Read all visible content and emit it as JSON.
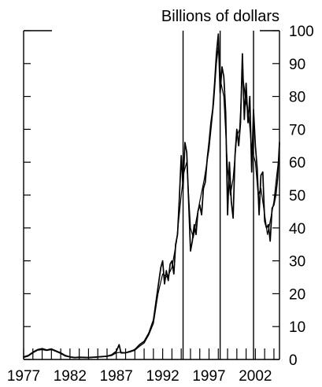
{
  "chart_data": {
    "type": "line",
    "title": "",
    "unit_label": "Billions of dollars",
    "xlabel": "",
    "ylabel": "Billions of dollars",
    "xlim": [
      1977,
      2004.6
    ],
    "ylim": [
      0,
      100
    ],
    "x_tick_labels": [
      "1977",
      "1982",
      "1987",
      "1992",
      "1997",
      "2002"
    ],
    "y_tick_labels": [
      "0",
      "10",
      "20",
      "30",
      "40",
      "50",
      "60",
      "70",
      "80",
      "90",
      "100"
    ],
    "y_ticks_side": "right",
    "grid": false,
    "legend": "none",
    "vertical_markers": [
      1994.2,
      1998.2,
      2001.8
    ],
    "series": [
      {
        "color": "#000000",
        "x": [
          1977.0,
          1977.5,
          1978.0,
          1978.5,
          1979.0,
          1979.5,
          1980.0,
          1980.5,
          1981.0,
          1981.5,
          1982.0,
          1982.5,
          1983.0,
          1984.0,
          1985.0,
          1986.0,
          1986.5,
          1987.0,
          1987.3,
          1987.5,
          1988.0,
          1988.5,
          1989.0,
          1989.5,
          1990.0,
          1990.5,
          1991.0,
          1991.3,
          1991.6,
          1991.8,
          1992.0,
          1992.2,
          1992.4,
          1992.6,
          1992.8,
          1993.0,
          1993.2,
          1993.4,
          1993.6,
          1993.8,
          1994.0,
          1994.2,
          1994.4,
          1994.6,
          1994.8,
          1995.0,
          1995.2,
          1995.4,
          1995.6,
          1995.8,
          1996.0,
          1996.2,
          1996.4,
          1996.6,
          1996.8,
          1997.0,
          1997.2,
          1997.4,
          1997.6,
          1997.8,
          1998.0,
          1998.2,
          1998.4,
          1998.6,
          1998.8,
          1999.0,
          1999.2,
          1999.4,
          1999.6,
          1999.8,
          2000.0,
          2000.2,
          2000.4,
          2000.6,
          2000.8,
          2001.0,
          2001.2,
          2001.4,
          2001.6,
          2001.8,
          2002.0,
          2002.2,
          2002.4,
          2002.6,
          2002.8,
          2003.0,
          2003.2,
          2003.4,
          2003.6,
          2003.8,
          2004.0,
          2004.2,
          2004.4,
          2004.6
        ],
        "values": [
          0.8,
          1.2,
          2.2,
          3.0,
          3.3,
          2.9,
          3.2,
          2.6,
          2.0,
          1.2,
          0.8,
          0.6,
          0.7,
          0.6,
          0.8,
          1.0,
          1.4,
          2.5,
          4.5,
          2.0,
          2.0,
          2.5,
          3.0,
          4.5,
          5.5,
          8.0,
          12.0,
          18.0,
          24.0,
          28.0,
          30.0,
          23.0,
          27.0,
          24.0,
          29.0,
          30.0,
          26.0,
          35.0,
          38.0,
          49.0,
          62.0,
          52.0,
          66.0,
          63.0,
          48.0,
          33.0,
          36.0,
          41.0,
          38.0,
          45.0,
          47.0,
          44.0,
          52.0,
          54.0,
          61.0,
          66.0,
          72.0,
          76.0,
          84.0,
          93.0,
          99.0,
          81.0,
          89.0,
          86.0,
          75.0,
          44.0,
          60.0,
          48.0,
          43.0,
          62.0,
          70.0,
          65.0,
          72.0,
          93.0,
          73.0,
          84.0,
          72.0,
          80.0,
          57.0,
          76.0,
          65.0,
          58.0,
          44.0,
          56.0,
          57.0,
          42.0,
          40.0,
          41.0,
          36.0,
          46.0,
          47.0,
          50.0,
          55.0,
          66.0
        ]
      },
      {
        "color": "#000000",
        "x": [
          1977.0,
          1977.5,
          1978.0,
          1978.5,
          1979.0,
          1979.5,
          1980.0,
          1980.5,
          1981.0,
          1981.5,
          1982.0,
          1982.5,
          1983.0,
          1984.0,
          1985.0,
          1986.0,
          1986.5,
          1987.0,
          1987.5,
          1988.0,
          1988.5,
          1989.0,
          1989.5,
          1990.0,
          1990.5,
          1991.0,
          1991.5,
          1992.0,
          1992.5,
          1993.0,
          1993.5,
          1994.0,
          1994.3,
          1994.6,
          1995.0,
          1995.3,
          1995.6,
          1996.0,
          1996.5,
          1997.0,
          1997.5,
          1997.8,
          1998.0,
          1998.3,
          1998.6,
          1999.0,
          1999.3,
          1999.6,
          2000.0,
          2000.3,
          2000.6,
          2001.0,
          2001.3,
          2001.6,
          2002.0,
          2002.3,
          2002.6,
          2003.0,
          2003.3,
          2003.6,
          2004.0,
          2004.3,
          2004.6
        ],
        "values": [
          0.6,
          1.0,
          2.0,
          2.8,
          3.0,
          2.7,
          3.0,
          2.4,
          1.8,
          1.0,
          0.7,
          0.5,
          0.6,
          0.5,
          0.7,
          0.9,
          1.2,
          2.0,
          2.2,
          2.0,
          2.3,
          2.8,
          4.0,
          5.0,
          7.5,
          11.0,
          20.0,
          26.0,
          25.0,
          28.0,
          36.0,
          50.0,
          57.0,
          60.0,
          40.0,
          37.0,
          42.0,
          48.0,
          55.0,
          64.0,
          78.0,
          90.0,
          95.0,
          84.0,
          80.0,
          58.0,
          50.0,
          55.0,
          68.0,
          70.0,
          87.0,
          78.0,
          74.0,
          64.0,
          60.0,
          50.0,
          52.0,
          44.0,
          38.0,
          42.0,
          48.0,
          56.0,
          63.0
        ]
      }
    ]
  }
}
